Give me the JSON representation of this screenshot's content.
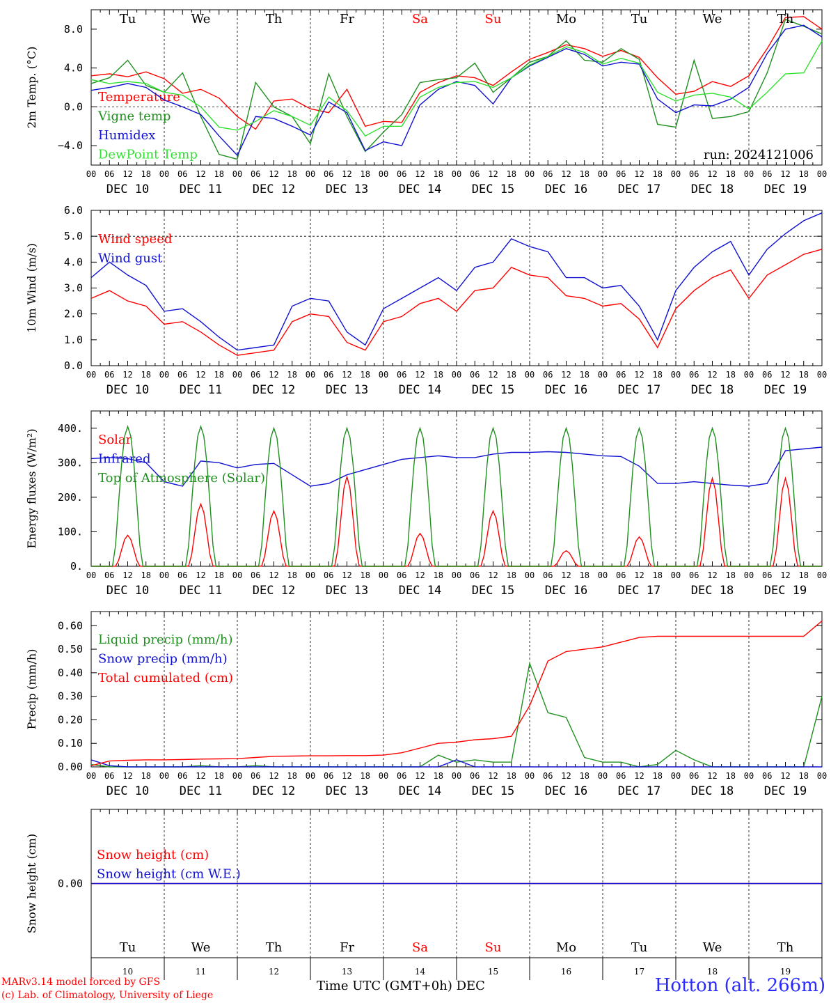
{
  "run_label": "run: 2024121006",
  "days_top": [
    "Tu",
    "We",
    "Th",
    "Fr",
    "Sa",
    "Su",
    "Mo",
    "Tu",
    "We",
    "Th"
  ],
  "weekend_days": [
    "Sa",
    "Su"
  ],
  "date_labels": [
    "DEC 10",
    "DEC 11",
    "DEC 12",
    "DEC 13",
    "DEC 14",
    "DEC 15",
    "DEC 16",
    "DEC 17",
    "DEC 18",
    "DEC 19"
  ],
  "hour_labels": [
    "00",
    "06",
    "12",
    "18"
  ],
  "hour_final": "00",
  "day_numbers": [
    "10",
    "11",
    "12",
    "13",
    "14",
    "15",
    "16",
    "17",
    "18",
    "19"
  ],
  "footer": {
    "credit_line1": "MARv3.14 model forced by GFS",
    "credit_line2": "(c) Lab. of Climatology, University of Liege",
    "x_title": "Time UTC (GMT+0h) DEC",
    "station": "Hotton (alt. 266m)"
  },
  "colors": {
    "red": "#ff0000",
    "green": "#208f20",
    "blue": "#1010d0",
    "lightgreen": "#30e030"
  },
  "chart_data": [
    {
      "type": "line",
      "ylabel": "2m Temp. (°C)",
      "ylim": [
        -6.0,
        10.0
      ],
      "yticks": [
        8.0,
        4.0,
        0.0,
        -4.0
      ],
      "ytick_labels": [
        "8.0",
        "4.0",
        "0.0",
        "−4.0"
      ],
      "dashed_y": 0.0,
      "x": [
        0,
        6,
        12,
        18,
        24,
        30,
        36,
        42,
        48,
        54,
        60,
        66,
        72,
        78,
        84,
        90,
        96,
        102,
        108,
        114,
        120,
        126,
        132,
        138,
        144,
        150,
        156,
        162,
        168,
        174,
        180,
        186,
        192,
        198,
        204,
        210,
        216,
        222,
        228,
        234,
        240
      ],
      "series": [
        {
          "name": "Temperature",
          "color": "#ff0000",
          "values": [
            3.2,
            3.4,
            3.1,
            3.6,
            2.9,
            1.4,
            1.8,
            0.9,
            -1.0,
            -2.3,
            0.6,
            0.8,
            -0.2,
            -0.6,
            1.8,
            -2.0,
            -1.5,
            -1.6,
            1.5,
            2.5,
            3.2,
            3.0,
            2.2,
            3.6,
            4.9,
            5.6,
            6.4,
            6.0,
            5.2,
            5.8,
            5.1,
            3.0,
            1.3,
            1.6,
            2.6,
            2.1,
            3.2,
            6.0,
            9.2,
            9.3,
            8.0
          ]
        },
        {
          "name": "Vigne temp",
          "color": "#208f20",
          "values": [
            2.4,
            3.0,
            4.8,
            2.2,
            1.5,
            3.5,
            -1.0,
            -4.9,
            -5.4,
            2.5,
            0.0,
            -1.0,
            -3.8,
            3.4,
            -1.0,
            -4.6,
            -2.6,
            -0.8,
            2.5,
            2.8,
            3.0,
            4.5,
            1.5,
            3.0,
            4.6,
            5.2,
            6.8,
            4.8,
            4.6,
            6.0,
            4.9,
            -1.8,
            -2.1,
            4.8,
            -1.2,
            -1.0,
            -0.5,
            3.5,
            9.0,
            8.3,
            7.5
          ]
        },
        {
          "name": "Humidex",
          "color": "#1010d0",
          "values": [
            1.7,
            2.0,
            2.4,
            2.0,
            0.7,
            0.0,
            -0.8,
            -3.0,
            -5.0,
            -1.0,
            -1.2,
            -2.0,
            -2.9,
            0.5,
            -0.6,
            -4.5,
            -3.6,
            -4.0,
            0.2,
            1.8,
            2.6,
            2.2,
            0.3,
            3.0,
            4.2,
            5.1,
            6.0,
            5.4,
            4.2,
            4.6,
            4.4,
            0.8,
            -0.6,
            0.2,
            0.1,
            0.8,
            2.0,
            5.5,
            8.0,
            8.4,
            7.2
          ]
        },
        {
          "name": "DewPoint Temp",
          "color": "#30e030",
          "values": [
            2.8,
            2.4,
            2.6,
            2.4,
            1.5,
            1.2,
            0.0,
            -2.1,
            -2.4,
            -1.5,
            -0.4,
            -1.0,
            -1.9,
            1.0,
            -0.4,
            -3.0,
            -2.0,
            -2.0,
            1.0,
            2.0,
            2.5,
            2.6,
            2.0,
            3.0,
            4.3,
            5.2,
            6.2,
            5.6,
            4.4,
            5.0,
            4.5,
            1.5,
            0.6,
            1.2,
            1.4,
            1.0,
            -0.2,
            1.5,
            3.4,
            3.5,
            6.8
          ]
        }
      ]
    },
    {
      "type": "line",
      "ylabel": "10m Wind (m/s)",
      "ylim": [
        0.0,
        6.0
      ],
      "yticks": [
        6.0,
        5.0,
        4.0,
        3.0,
        2.0,
        1.0,
        0.0
      ],
      "ytick_labels": [
        "6.0",
        "5.0",
        "4.0",
        "3.0",
        "2.0",
        "1.0",
        "0.0"
      ],
      "dashed_y": 5.0,
      "x": [
        0,
        6,
        12,
        18,
        24,
        30,
        36,
        42,
        48,
        54,
        60,
        66,
        72,
        78,
        84,
        90,
        96,
        102,
        108,
        114,
        120,
        126,
        132,
        138,
        144,
        150,
        156,
        162,
        168,
        174,
        180,
        186,
        192,
        198,
        204,
        210,
        216,
        222,
        228,
        234,
        240
      ],
      "series": [
        {
          "name": "Wind speed",
          "color": "#ff0000",
          "values": [
            2.6,
            2.9,
            2.5,
            2.3,
            1.6,
            1.7,
            1.3,
            0.8,
            0.4,
            0.5,
            0.6,
            1.7,
            2.0,
            1.9,
            0.9,
            0.6,
            1.7,
            1.9,
            2.4,
            2.6,
            2.1,
            2.9,
            3.0,
            3.8,
            3.5,
            3.4,
            2.7,
            2.6,
            2.3,
            2.4,
            1.8,
            0.7,
            2.2,
            2.9,
            3.4,
            3.7,
            2.6,
            3.5,
            3.9,
            4.3,
            4.5
          ]
        },
        {
          "name": "Wind gust",
          "color": "#1010d0",
          "values": [
            3.4,
            4.0,
            3.5,
            3.1,
            2.1,
            2.2,
            1.7,
            1.1,
            0.6,
            0.7,
            0.8,
            2.3,
            2.6,
            2.5,
            1.3,
            0.8,
            2.2,
            2.6,
            3.0,
            3.4,
            2.9,
            3.8,
            4.0,
            4.9,
            4.6,
            4.4,
            3.4,
            3.4,
            3.0,
            3.1,
            2.3,
            1.0,
            2.9,
            3.8,
            4.4,
            4.8,
            3.5,
            4.5,
            5.1,
            5.6,
            5.9
          ]
        }
      ]
    },
    {
      "type": "line",
      "ylabel": "Energy fluxes (W/m²)",
      "ylim": [
        0,
        450
      ],
      "yticks": [
        400,
        300,
        200,
        100,
        0
      ],
      "ytick_labels": [
        "400.",
        "300.",
        "200.",
        "100.",
        "0."
      ],
      "x": [
        0,
        6,
        12,
        18,
        24,
        30,
        36,
        42,
        48,
        54,
        60,
        66,
        72,
        78,
        84,
        90,
        96,
        102,
        108,
        114,
        120,
        126,
        132,
        138,
        144,
        150,
        156,
        162,
        168,
        174,
        180,
        186,
        192,
        198,
        204,
        210,
        216,
        222,
        228,
        234,
        240
      ],
      "series": [
        {
          "name": "Solar",
          "color": "#ff0000",
          "peaks": [
            90,
            180,
            160,
            260,
            95,
            160,
            45,
            85,
            255,
            255
          ]
        },
        {
          "name": "Infrared",
          "color": "#1010d0",
          "values": [
            312,
            315,
            312,
            300,
            245,
            232,
            305,
            300,
            285,
            295,
            298,
            265,
            232,
            240,
            265,
            280,
            295,
            310,
            315,
            320,
            315,
            315,
            325,
            330,
            330,
            332,
            330,
            325,
            320,
            318,
            290,
            240,
            240,
            245,
            240,
            235,
            232,
            240,
            335,
            340,
            345
          ]
        },
        {
          "name": "Top of Atmosphere (Solar)",
          "color": "#208f20",
          "peaks": [
            405,
            405,
            400,
            400,
            400,
            400,
            400,
            400,
            400,
            400
          ]
        }
      ]
    },
    {
      "type": "line",
      "ylabel": "Precip (mm/h)",
      "ylim": [
        0.0,
        0.66
      ],
      "yticks": [
        0.6,
        0.5,
        0.4,
        0.3,
        0.2,
        0.1,
        0.0
      ],
      "ytick_labels": [
        "0.60",
        "0.50",
        "0.40",
        "0.30",
        "0.20",
        "0.10",
        "0.00"
      ],
      "x": [
        0,
        6,
        12,
        18,
        24,
        30,
        36,
        42,
        48,
        54,
        60,
        66,
        72,
        78,
        84,
        90,
        96,
        102,
        108,
        114,
        120,
        126,
        132,
        138,
        144,
        150,
        156,
        162,
        168,
        174,
        180,
        186,
        192,
        198,
        204,
        210,
        216,
        222,
        228,
        234,
        240
      ],
      "series": [
        {
          "name": "Liquid precip (mm/h)",
          "color": "#208f20",
          "values": [
            0.01,
            0.0,
            0.0,
            0.0,
            0.0,
            0.0,
            0.005,
            0.0,
            0.0,
            0.005,
            0.0,
            0.0,
            0.0,
            0.0,
            0.0,
            0.0,
            0.0,
            0.0,
            0.0,
            0.05,
            0.02,
            0.03,
            0.02,
            0.02,
            0.44,
            0.23,
            0.21,
            0.04,
            0.02,
            0.02,
            0.0,
            0.01,
            0.07,
            0.03,
            0.0,
            0.0,
            0.0,
            0.0,
            0.0,
            0.0,
            0.3
          ]
        },
        {
          "name": "Snow precip (mm/h)",
          "color": "#1010d0",
          "values": [
            0.03,
            0.005,
            0.0,
            0.0,
            0.0,
            0.0,
            0.0,
            0.0,
            0.0,
            0.0,
            0.0,
            0.0,
            0.0,
            0.0,
            0.0,
            0.0,
            0.0,
            0.0,
            0.0,
            0.0,
            0.03,
            0.0,
            0.0,
            0.0,
            0.0,
            0.0,
            0.0,
            0.0,
            0.0,
            0.0,
            0.0,
            0.0,
            0.0,
            0.0,
            0.0,
            0.0,
            0.0,
            0.0,
            0.0,
            0.0,
            0.0
          ]
        },
        {
          "name": "Total cumulated (cm)",
          "color": "#ff0000",
          "values": [
            0.005,
            0.025,
            0.028,
            0.03,
            0.03,
            0.031,
            0.033,
            0.034,
            0.035,
            0.04,
            0.045,
            0.046,
            0.047,
            0.047,
            0.048,
            0.048,
            0.05,
            0.06,
            0.08,
            0.1,
            0.105,
            0.115,
            0.12,
            0.13,
            0.26,
            0.45,
            0.49,
            0.5,
            0.51,
            0.53,
            0.55,
            0.555,
            0.555,
            0.555,
            0.555,
            0.555,
            0.555,
            0.555,
            0.555,
            0.555,
            0.62
          ]
        }
      ]
    },
    {
      "type": "line",
      "ylabel": "Snow height (cm)",
      "ylim": [
        -1.0,
        1.0
      ],
      "yticks": [
        0.0
      ],
      "ytick_labels": [
        "0.00"
      ],
      "series": [
        {
          "name": "Snow height (cm)",
          "color": "#ff0000",
          "values": [
            0,
            0
          ]
        },
        {
          "name": "Snow height (cm W.E.)",
          "color": "#1010d0",
          "values": [
            0,
            0
          ]
        }
      ]
    }
  ]
}
